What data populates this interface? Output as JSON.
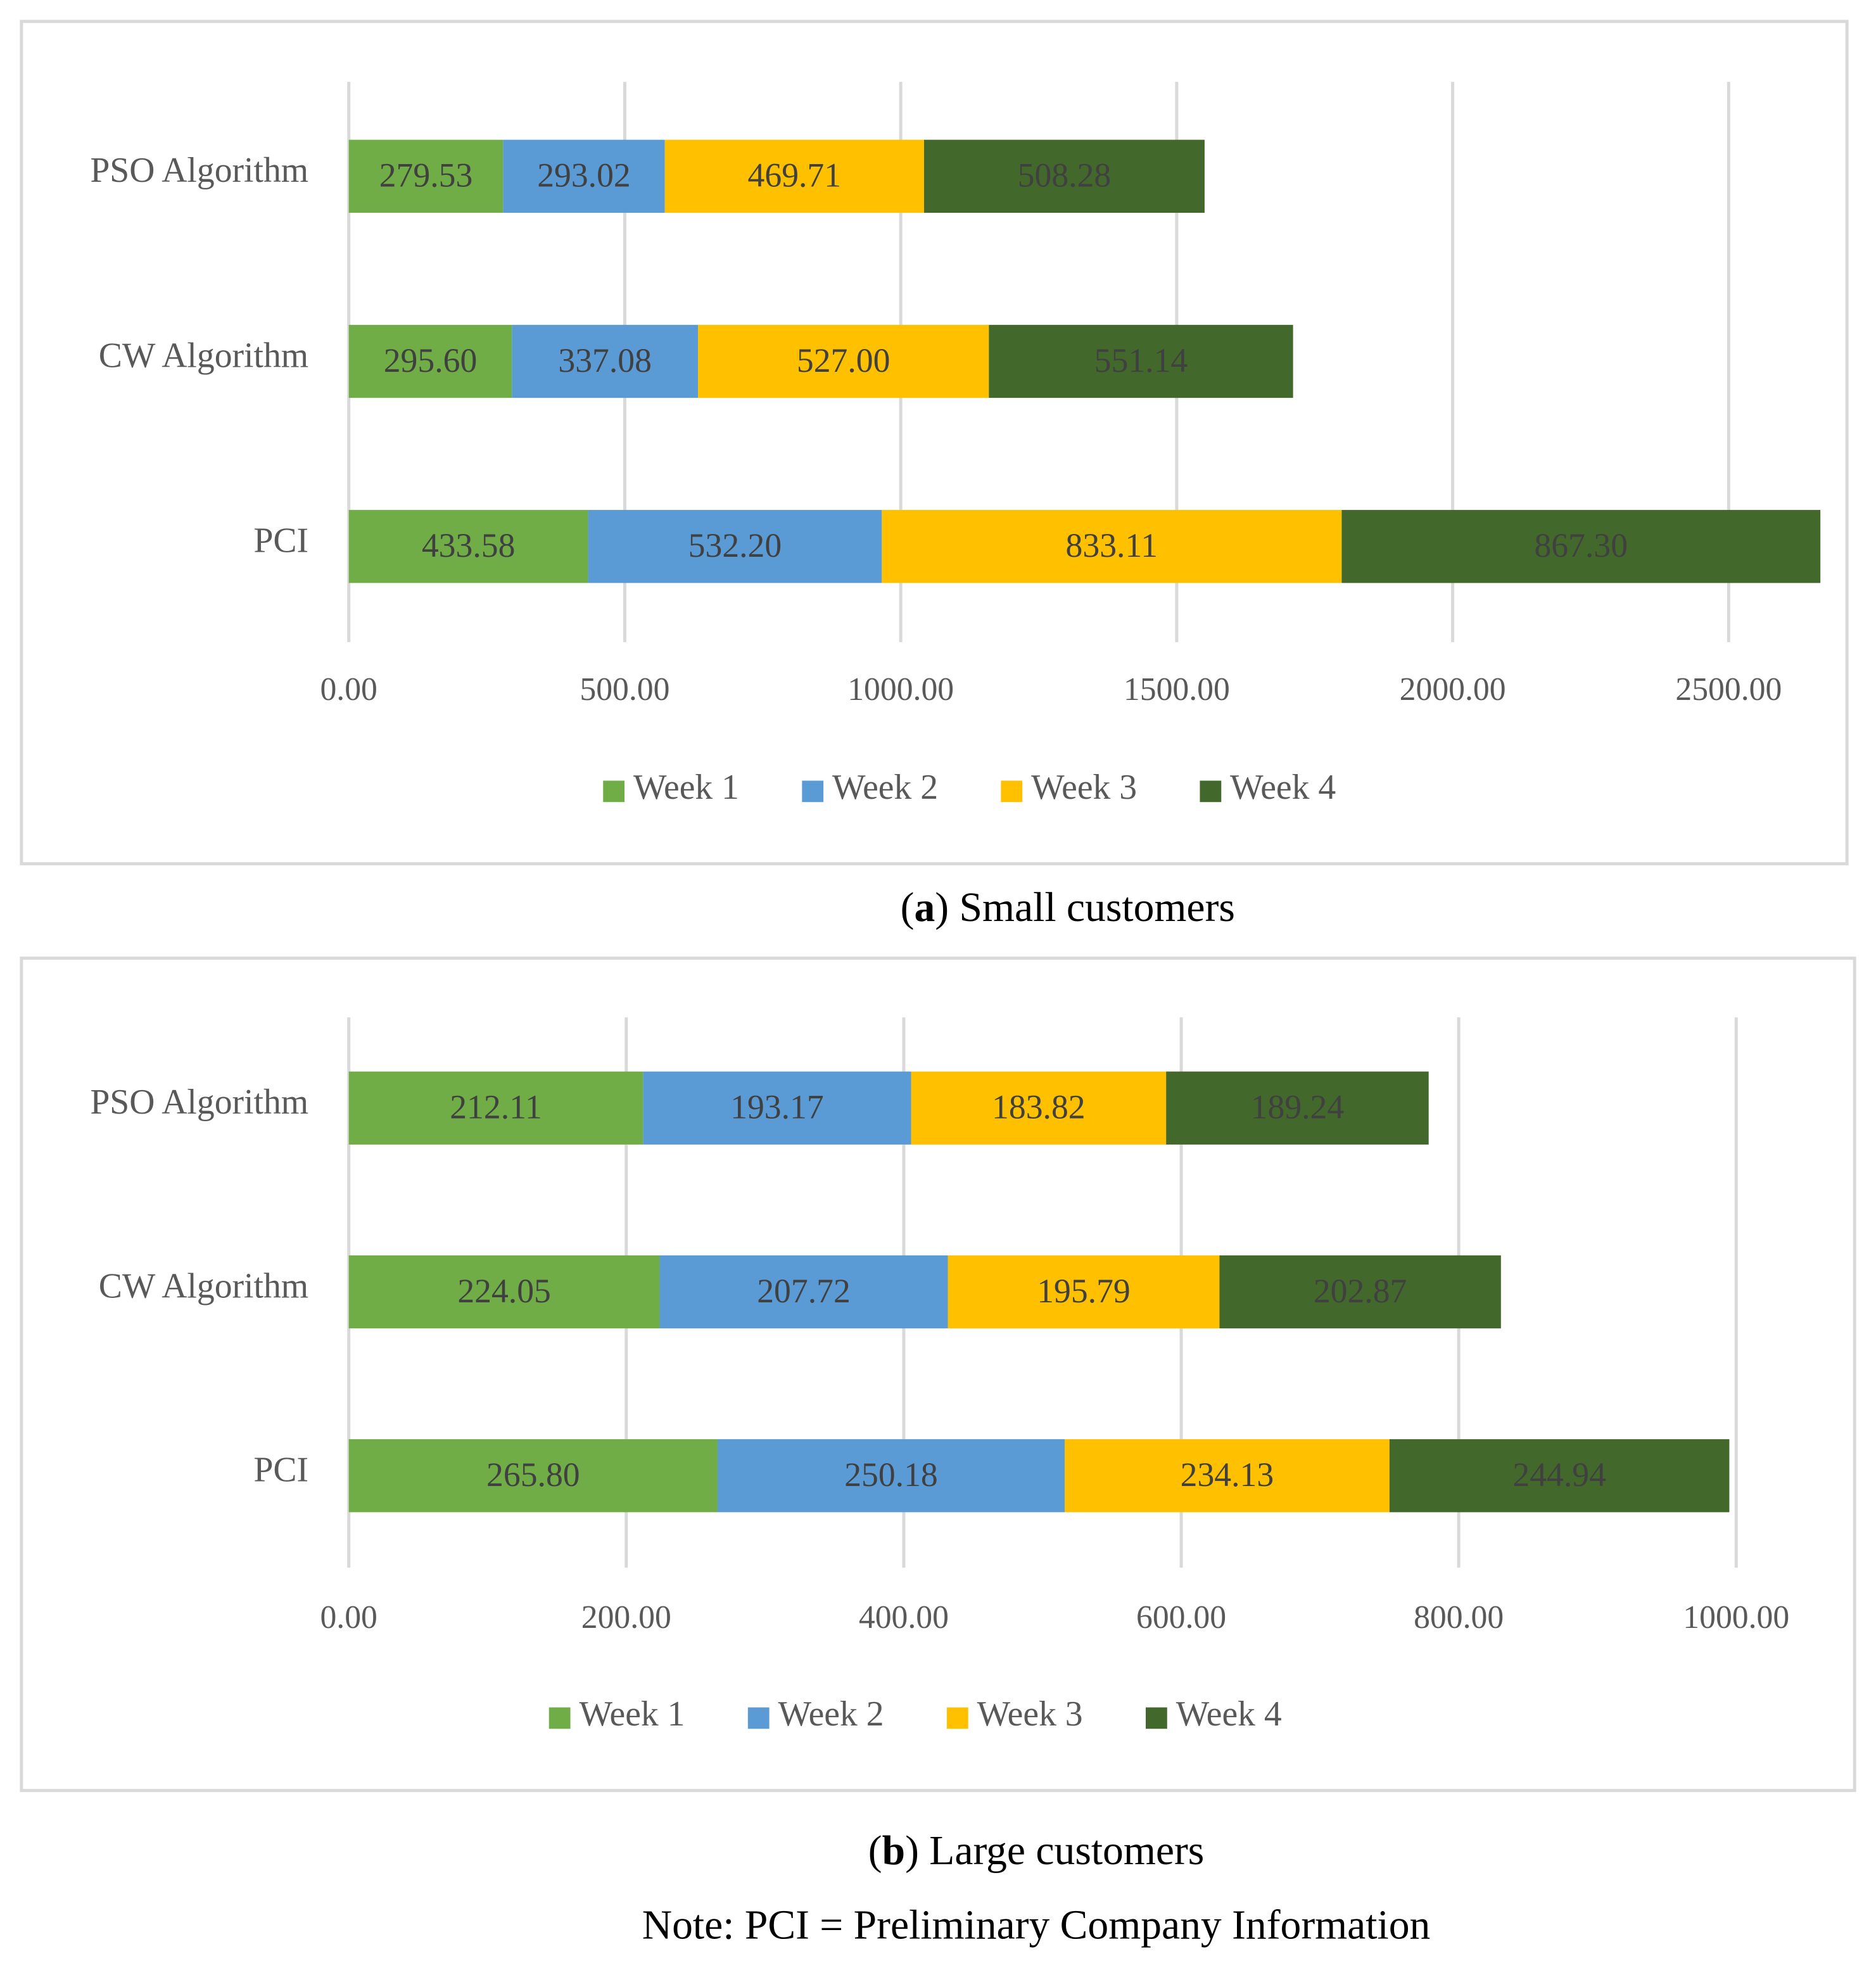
{
  "chart_data": [
    {
      "type": "bar",
      "orientation": "horizontal",
      "stacked": true,
      "grid": true,
      "legend": "bottom",
      "caption": [
        "(",
        "a",
        ") Small customers"
      ],
      "categories": [
        "PSO Algorithm",
        "CW Algorithm",
        "PCI"
      ],
      "series": [
        {
          "name": "Week 1",
          "color": "#70ad47",
          "values": [
            279.53,
            295.6,
            433.58
          ],
          "value_labels": [
            "279.53",
            "295.60",
            "433.58"
          ]
        },
        {
          "name": "Week 2",
          "color": "#5b9bd5",
          "values": [
            293.02,
            337.08,
            532.2
          ],
          "value_labels": [
            "293.02",
            "337.08",
            "532.20"
          ]
        },
        {
          "name": "Week 3",
          "color": "#ffc000",
          "values": [
            469.71,
            527,
            833.11
          ],
          "value_labels": [
            "469.71",
            "527.00",
            "833.11"
          ]
        },
        {
          "name": "Week 4",
          "color": "#43682b",
          "values": [
            508.28,
            551.14,
            867.3
          ],
          "value_labels": [
            "508.28",
            "551.14",
            "867.30"
          ]
        }
      ],
      "xlim": [
        0,
        2500
      ],
      "xticks": [
        {
          "value": 0,
          "label": "0.00"
        },
        {
          "value": 500,
          "label": "500.00"
        },
        {
          "value": 1000,
          "label": "1000.00"
        },
        {
          "value": 1500,
          "label": "1500.00"
        },
        {
          "value": 2000,
          "label": "2000.00"
        },
        {
          "value": 2500,
          "label": "2500.00"
        }
      ]
    },
    {
      "type": "bar",
      "orientation": "horizontal",
      "stacked": true,
      "grid": true,
      "legend": "bottom",
      "caption": [
        "(",
        "b",
        ") Large customers"
      ],
      "note": "Note: PCI = Preliminary Company Information",
      "categories": [
        "PSO Algorithm",
        "CW Algorithm",
        "PCI"
      ],
      "series": [
        {
          "name": "Week 1",
          "color": "#70ad47",
          "values": [
            212.11,
            224.05,
            265.8
          ],
          "value_labels": [
            "212.11",
            "224.05",
            "265.80"
          ]
        },
        {
          "name": "Week 2",
          "color": "#5b9bd5",
          "values": [
            193.17,
            207.72,
            250.18
          ],
          "value_labels": [
            "193.17",
            "207.72",
            "250.18"
          ]
        },
        {
          "name": "Week 3",
          "color": "#ffc000",
          "values": [
            183.82,
            195.79,
            234.13
          ],
          "value_labels": [
            "183.82",
            "195.79",
            "234.13"
          ]
        },
        {
          "name": "Week 4",
          "color": "#43682b",
          "values": [
            189.24,
            202.87,
            244.94
          ],
          "value_labels": [
            "189.24",
            "202.87",
            "244.94"
          ]
        }
      ],
      "xlim": [
        0,
        1000
      ],
      "xticks": [
        {
          "value": 0,
          "label": "0.00"
        },
        {
          "value": 200,
          "label": "200.00"
        },
        {
          "value": 400,
          "label": "400.00"
        },
        {
          "value": 600,
          "label": "600.00"
        },
        {
          "value": 800,
          "label": "800.00"
        },
        {
          "value": 1000,
          "label": "1000.00"
        }
      ]
    }
  ]
}
